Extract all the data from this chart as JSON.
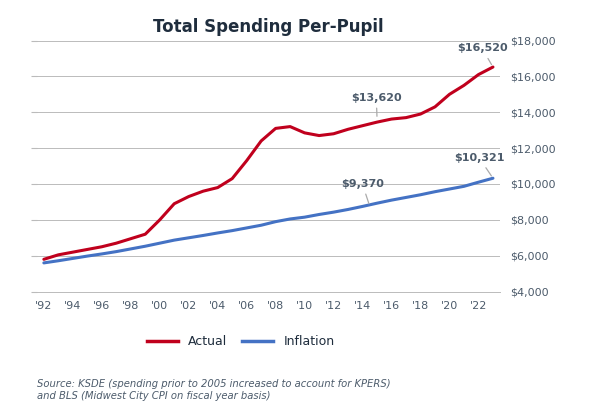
{
  "title": "Total Spending Per-Pupil",
  "years_actual": [
    1992,
    1993,
    1994,
    1995,
    1996,
    1997,
    1998,
    1999,
    2000,
    2001,
    2002,
    2003,
    2004,
    2005,
    2006,
    2007,
    2008,
    2009,
    2010,
    2011,
    2012,
    2013,
    2014,
    2015,
    2016,
    2017,
    2018,
    2019,
    2020,
    2021,
    2022,
    2023
  ],
  "actual": [
    5800,
    6050,
    6200,
    6350,
    6500,
    6700,
    6950,
    7200,
    8000,
    8900,
    9300,
    9600,
    9800,
    10300,
    11300,
    12400,
    13100,
    13200,
    12850,
    12700,
    12800,
    13050,
    13250,
    13450,
    13620,
    13700,
    13900,
    14300,
    15000,
    15500,
    16100,
    16520
  ],
  "years_inflation": [
    1992,
    1993,
    1994,
    1995,
    1996,
    1997,
    1998,
    1999,
    2000,
    2001,
    2002,
    2003,
    2004,
    2005,
    2006,
    2007,
    2008,
    2009,
    2010,
    2011,
    2012,
    2013,
    2014,
    2015,
    2016,
    2017,
    2018,
    2019,
    2020,
    2021,
    2022,
    2023
  ],
  "inflation": [
    5600,
    5720,
    5850,
    5980,
    6100,
    6230,
    6380,
    6530,
    6700,
    6870,
    7000,
    7130,
    7270,
    7400,
    7550,
    7700,
    7900,
    8050,
    8150,
    8300,
    8430,
    8580,
    8750,
    8930,
    9100,
    9250,
    9400,
    9570,
    9720,
    9870,
    10100,
    10321
  ],
  "actual_color": "#C0001D",
  "inflation_color": "#4472C4",
  "annotation_color": "#4C5B6B",
  "ylim": [
    4000,
    18000
  ],
  "yticks": [
    4000,
    6000,
    8000,
    10000,
    12000,
    14000,
    16000,
    18000
  ],
  "xticks": [
    1992,
    1994,
    1996,
    1998,
    2000,
    2002,
    2004,
    2006,
    2008,
    2010,
    2012,
    2014,
    2016,
    2018,
    2020,
    2022
  ],
  "source_text": "Source: KSDE (spending prior to 2005 increased to account for KPERS)\nand BLS (Midwest City CPI on fiscal year basis)",
  "background_color": "#FFFFFF",
  "grid_color": "#BBBBBB",
  "linewidth": 2.2
}
